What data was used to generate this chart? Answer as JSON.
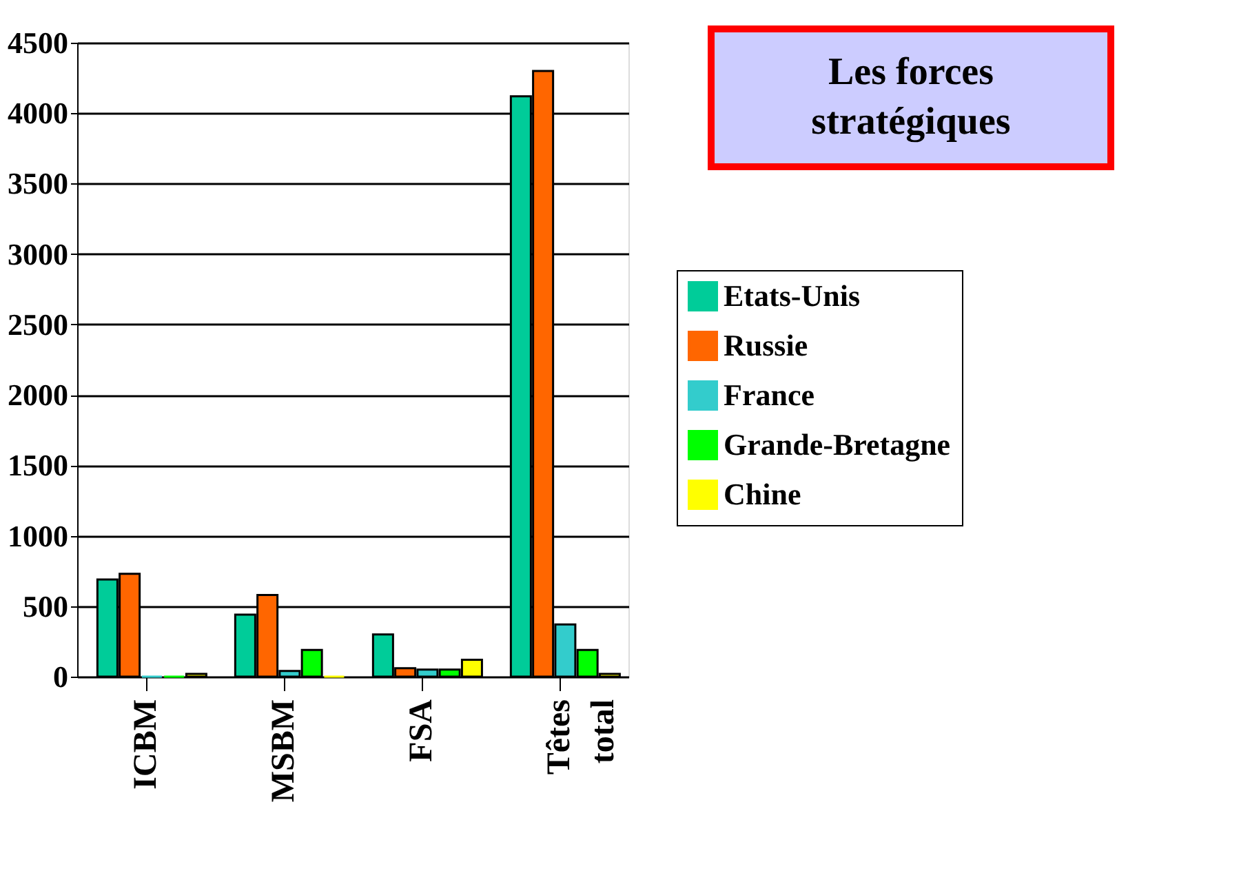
{
  "chart_data": {
    "type": "bar",
    "title": "Les forces stratégiques",
    "categories": [
      "ICBM",
      "MSBM",
      "FSA",
      "Têtes total"
    ],
    "series": [
      {
        "name": "Etats-Unis",
        "color": "#00cc99",
        "values": [
          690,
          440,
          300,
          4120
        ]
      },
      {
        "name": "Russie",
        "color": "#ff6600",
        "values": [
          730,
          580,
          60,
          4300
        ]
      },
      {
        "name": "France",
        "color": "#33cccc",
        "values": [
          0,
          40,
          50,
          370
        ]
      },
      {
        "name": "Grande-Bretagne",
        "color": "#00ff00",
        "values": [
          0,
          190,
          50,
          190
        ]
      },
      {
        "name": "Chine",
        "color": "#ffff00",
        "values": [
          20,
          0,
          120,
          20
        ]
      }
    ],
    "ylim": [
      0,
      4500
    ],
    "yticks": [
      0,
      500,
      1000,
      1500,
      2000,
      2500,
      3000,
      3500,
      4000,
      4500
    ],
    "grid": "y",
    "legend": "right"
  }
}
